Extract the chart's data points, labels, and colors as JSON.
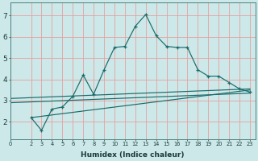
{
  "xlabel": "Humidex (Indice chaleur)",
  "bg_color": "#cce8e8",
  "line_color": "#1a6b6b",
  "grid_color": "#e8a0a0",
  "xlim": [
    0,
    23.5
  ],
  "ylim": [
    1.2,
    7.6
  ],
  "xticks": [
    0,
    2,
    3,
    4,
    5,
    6,
    7,
    8,
    9,
    10,
    11,
    12,
    13,
    14,
    15,
    16,
    17,
    18,
    19,
    20,
    21,
    22,
    23
  ],
  "yticks": [
    2,
    3,
    4,
    5,
    6,
    7
  ],
  "main_series": {
    "x": [
      2,
      3,
      4,
      5,
      6,
      7,
      8,
      9,
      10,
      11,
      12,
      13,
      14,
      15,
      16,
      17,
      18,
      19,
      20,
      21,
      22,
      23
    ],
    "y": [
      2.2,
      1.6,
      2.6,
      2.7,
      3.2,
      4.2,
      3.3,
      4.45,
      5.5,
      5.55,
      6.5,
      7.05,
      6.05,
      5.55,
      5.5,
      5.5,
      4.45,
      4.15,
      4.15,
      3.85,
      3.55,
      3.4
    ]
  },
  "ref_lines": [
    {
      "x": [
        2,
        23
      ],
      "y": [
        2.2,
        3.5
      ]
    },
    {
      "x": [
        0,
        23
      ],
      "y": [
        3.1,
        3.55
      ]
    },
    {
      "x": [
        0,
        23
      ],
      "y": [
        2.9,
        3.35
      ]
    }
  ]
}
